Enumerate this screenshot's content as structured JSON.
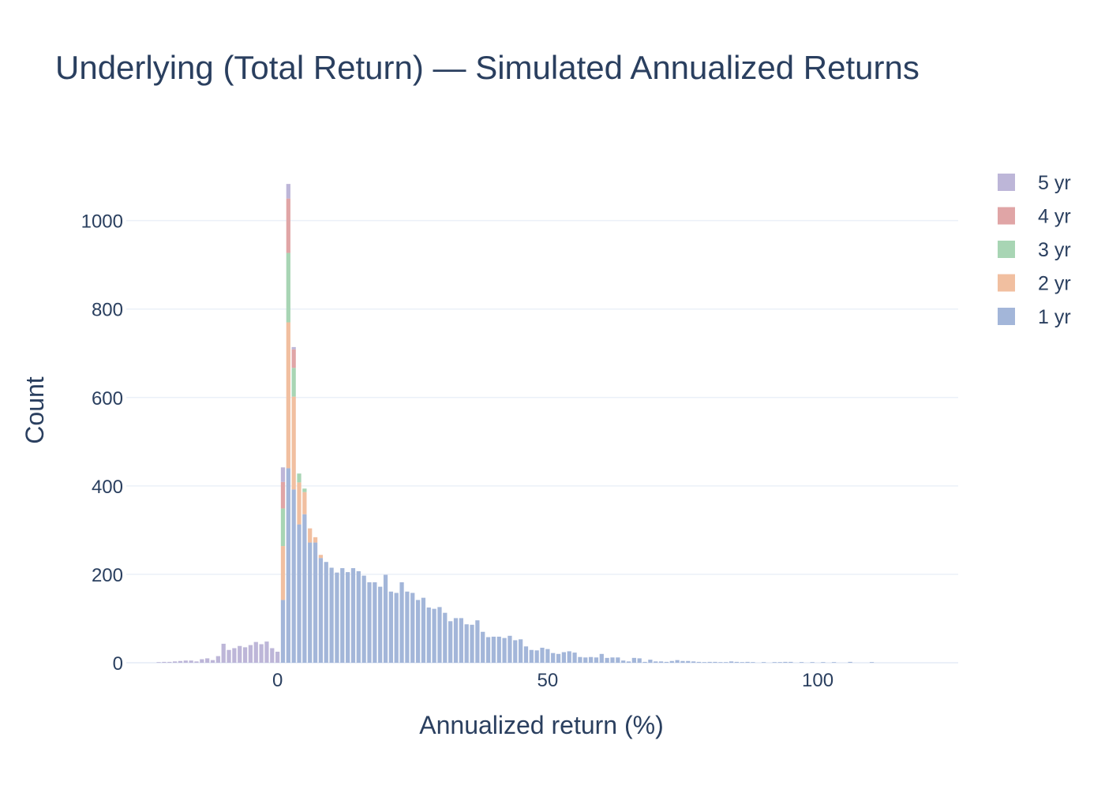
{
  "chart_data": {
    "type": "bar",
    "title": "Underlying (Total Return) — Simulated Annualized Returns",
    "xlabel": "Annualized return (%)",
    "ylabel": "Count",
    "xlim": [
      -28,
      126
    ],
    "ylim": [
      0,
      1110
    ],
    "x_ticks": [
      0,
      50,
      100
    ],
    "y_ticks": [
      0,
      200,
      400,
      600,
      800,
      1000
    ],
    "grid": true,
    "barmode": "stack",
    "bin_width": 1,
    "legend_position": "top-right",
    "series": [
      {
        "name": "1 yr",
        "color": "#a3b6d9",
        "points": [
          [
            1,
            142
          ],
          [
            2,
            440
          ],
          [
            3,
            392
          ],
          [
            4,
            313
          ],
          [
            5,
            336
          ],
          [
            6,
            272
          ],
          [
            7,
            272
          ],
          [
            8,
            237
          ],
          [
            9,
            228
          ],
          [
            10,
            215
          ],
          [
            11,
            204
          ],
          [
            12,
            214
          ],
          [
            13,
            205
          ],
          [
            14,
            214
          ],
          [
            15,
            207
          ],
          [
            16,
            197
          ],
          [
            17,
            182
          ],
          [
            18,
            182
          ],
          [
            19,
            172
          ],
          [
            20,
            199
          ],
          [
            21,
            161
          ],
          [
            22,
            158
          ],
          [
            23,
            182
          ],
          [
            24,
            161
          ],
          [
            25,
            158
          ],
          [
            26,
            142
          ],
          [
            27,
            147
          ],
          [
            28,
            125
          ],
          [
            29,
            122
          ],
          [
            30,
            126
          ],
          [
            31,
            113
          ],
          [
            32,
            94
          ],
          [
            33,
            101
          ],
          [
            34,
            101
          ],
          [
            35,
            87
          ],
          [
            36,
            86
          ],
          [
            37,
            96
          ],
          [
            38,
            70
          ],
          [
            39,
            58
          ],
          [
            40,
            59
          ],
          [
            41,
            59
          ],
          [
            42,
            56
          ],
          [
            43,
            61
          ],
          [
            44,
            51
          ],
          [
            45,
            53
          ],
          [
            46,
            37
          ],
          [
            47,
            29
          ],
          [
            48,
            28
          ],
          [
            49,
            34
          ],
          [
            50,
            31
          ],
          [
            51,
            22
          ],
          [
            52,
            20
          ],
          [
            53,
            24
          ],
          [
            54,
            26
          ],
          [
            55,
            23
          ],
          [
            56,
            13
          ],
          [
            57,
            12
          ],
          [
            58,
            13
          ],
          [
            59,
            12
          ],
          [
            60,
            20
          ],
          [
            61,
            11
          ],
          [
            62,
            12
          ],
          [
            63,
            12
          ],
          [
            64,
            5
          ],
          [
            65,
            3
          ],
          [
            66,
            11
          ],
          [
            67,
            10
          ],
          [
            68,
            2
          ],
          [
            69,
            7
          ],
          [
            70,
            3
          ],
          [
            71,
            3
          ],
          [
            72,
            2
          ],
          [
            73,
            4
          ],
          [
            74,
            6
          ],
          [
            75,
            4
          ],
          [
            76,
            4
          ],
          [
            77,
            3
          ],
          [
            78,
            2
          ],
          [
            79,
            1
          ],
          [
            80,
            2
          ],
          [
            81,
            2
          ],
          [
            82,
            1
          ],
          [
            83,
            1
          ],
          [
            84,
            3
          ],
          [
            85,
            2
          ],
          [
            86,
            1
          ],
          [
            87,
            2
          ],
          [
            88,
            1
          ],
          [
            90,
            1
          ],
          [
            92,
            1
          ],
          [
            93,
            1
          ],
          [
            94,
            2
          ],
          [
            95,
            2
          ],
          [
            97,
            1
          ],
          [
            99,
            1
          ],
          [
            101,
            1
          ],
          [
            103,
            1
          ],
          [
            106,
            2
          ],
          [
            110,
            1
          ]
        ]
      },
      {
        "name": "2 yr",
        "color": "#f1bfa0",
        "points": [
          [
            1,
            122
          ],
          [
            2,
            330
          ],
          [
            3,
            210
          ],
          [
            4,
            95
          ],
          [
            5,
            50
          ],
          [
            6,
            32
          ],
          [
            7,
            12
          ],
          [
            8,
            7
          ]
        ]
      },
      {
        "name": "3 yr",
        "color": "#a8d5b4",
        "points": [
          [
            1,
            85
          ],
          [
            2,
            157
          ],
          [
            3,
            65
          ],
          [
            4,
            20
          ],
          [
            5,
            8
          ]
        ]
      },
      {
        "name": "4 yr",
        "color": "#e0a5a6",
        "points": [
          [
            1,
            60
          ],
          [
            2,
            123
          ],
          [
            3,
            42
          ]
        ]
      },
      {
        "name": "5 yr",
        "color": "#bdb6d8",
        "points": [
          [
            -22,
            1
          ],
          [
            -21,
            2
          ],
          [
            -20,
            2
          ],
          [
            -19,
            3
          ],
          [
            -18,
            4
          ],
          [
            -17,
            5
          ],
          [
            -16,
            5
          ],
          [
            -15,
            3
          ],
          [
            -14,
            8
          ],
          [
            -13,
            10
          ],
          [
            -12,
            6
          ],
          [
            -11,
            15
          ],
          [
            -10,
            43
          ],
          [
            -9,
            29
          ],
          [
            -8,
            33
          ],
          [
            -7,
            38
          ],
          [
            -6,
            35
          ],
          [
            -5,
            40
          ],
          [
            -4,
            47
          ],
          [
            -3,
            42
          ],
          [
            -2,
            48
          ],
          [
            -1,
            33
          ],
          [
            0,
            25
          ],
          [
            1,
            33
          ],
          [
            2,
            33
          ],
          [
            3,
            5
          ]
        ]
      }
    ]
  }
}
